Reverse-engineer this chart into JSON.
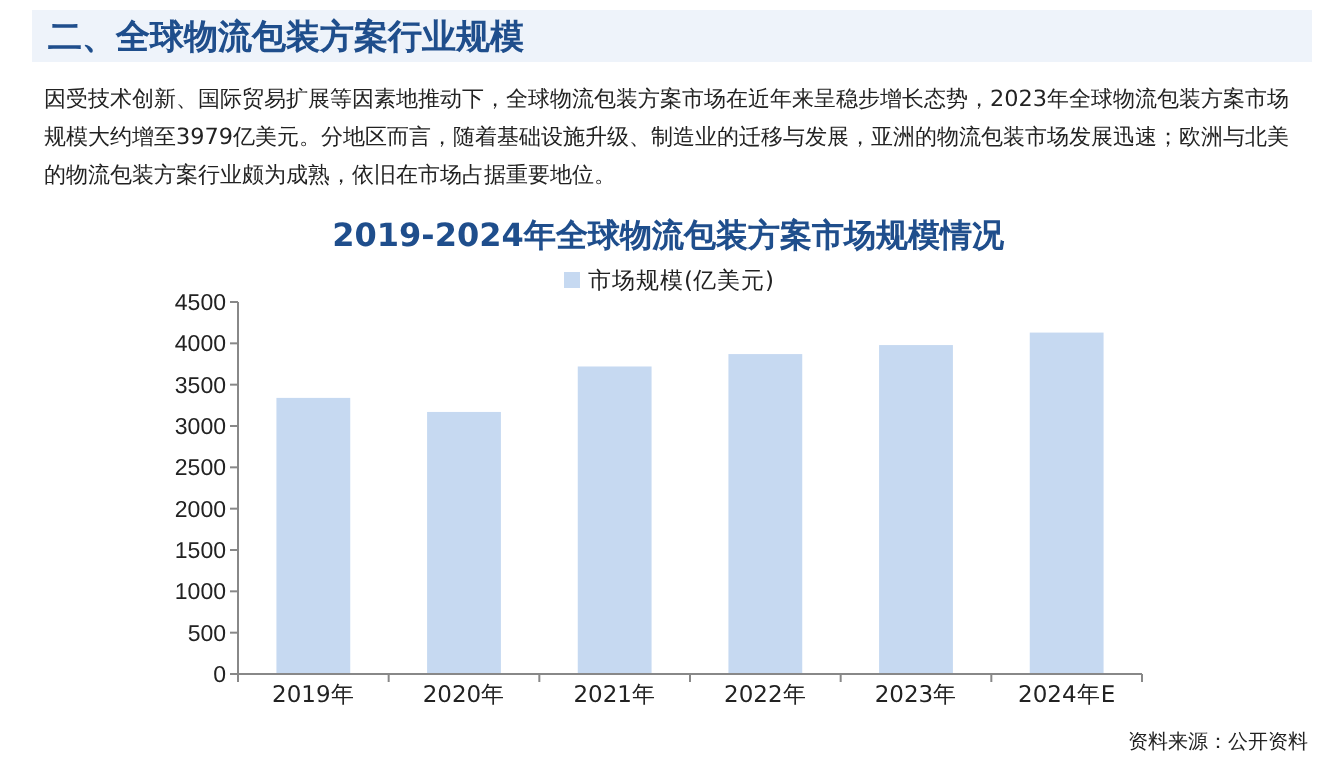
{
  "chart_data": {
    "type": "bar",
    "title": "2019-2024年全球物流包装方案市场规模情况",
    "annotations": [
      "二、全球物流包装方案行业规模",
      "因受技术创新、国际贸易扩展等因素地推动下，全球物流包装方案市场在近年来呈稳步增长态势，2023年全球物流包装方案市场规模大约增至3979亿美元。分地区而言，随着基础设施升级、制造业的迁移与发展，亚洲的物流包装市场发展迅速；欧洲与北美的物流包装方案行业颇为成熟，依旧在市场占据重要地位。",
      "资料来源：公开资料"
    ],
    "categories": [
      "2019年",
      "2020年",
      "2021年",
      "2022年",
      "2023年",
      "2024年E"
    ],
    "series": [
      {
        "name": "市场规模(亿美元)",
        "color": "#c6d9f1",
        "values": [
          3340,
          3170,
          3720,
          3870,
          3979,
          4130
        ]
      }
    ],
    "ylim": [
      0,
      4500
    ],
    "yticks": [
      0,
      500,
      1000,
      1500,
      2000,
      2500,
      3000,
      3500,
      4000,
      4500
    ],
    "legend": "top"
  }
}
